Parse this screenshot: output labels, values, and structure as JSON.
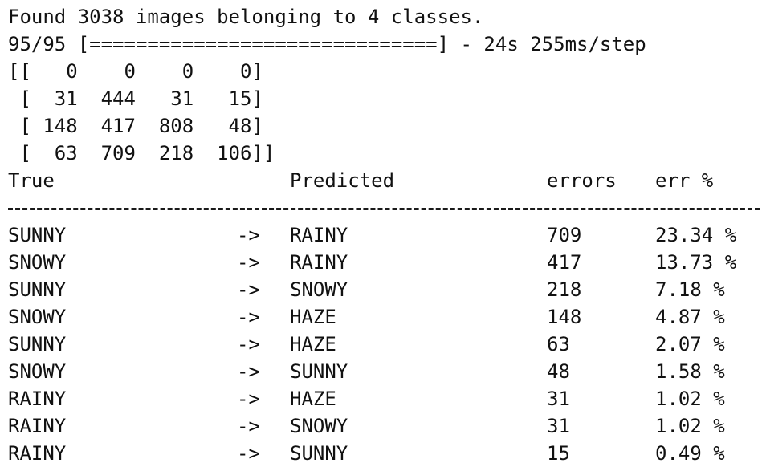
{
  "log": {
    "found_line": "Found 3038 images belonging to 4 classes.",
    "progress_line": "95/95 [==============================] - 24s 255ms/step"
  },
  "confusion_matrix": [
    "[[   0    0    0    0]",
    " [  31  444   31   15]",
    " [ 148  417  808   48]",
    " [  63  709  218  106]]"
  ],
  "table": {
    "headers": {
      "true": "True",
      "predicted": "Predicted",
      "errors": "errors",
      "err_pct": "err %"
    },
    "arrow": "->",
    "rows": [
      {
        "true": "SUNNY",
        "predicted": "RAINY",
        "errors": "709",
        "err_pct": "23.34 %"
      },
      {
        "true": "SNOWY",
        "predicted": "RAINY",
        "errors": "417",
        "err_pct": "13.73 %"
      },
      {
        "true": "SUNNY",
        "predicted": "SNOWY",
        "errors": "218",
        "err_pct": "7.18 %"
      },
      {
        "true": "SNOWY",
        "predicted": "HAZE",
        "errors": "148",
        "err_pct": "4.87 %"
      },
      {
        "true": "SUNNY",
        "predicted": "HAZE",
        "errors": "63",
        "err_pct": "2.07 %"
      },
      {
        "true": "SNOWY",
        "predicted": "SUNNY",
        "errors": "48",
        "err_pct": "1.58 %"
      },
      {
        "true": "RAINY",
        "predicted": "HAZE",
        "errors": "31",
        "err_pct": "1.02 %"
      },
      {
        "true": "RAINY",
        "predicted": "SNOWY",
        "errors": "31",
        "err_pct": "1.02 %"
      },
      {
        "true": "RAINY",
        "predicted": "SUNNY",
        "errors": "15",
        "err_pct": "0.49 %"
      }
    ]
  }
}
